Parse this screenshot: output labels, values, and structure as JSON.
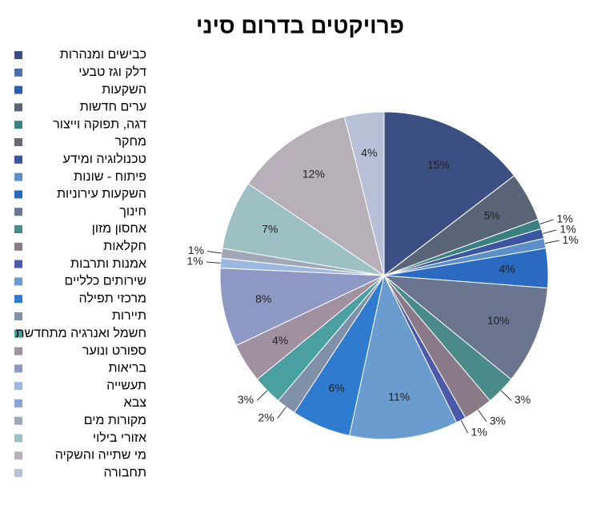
{
  "chart_data": {
    "type": "pie",
    "title": "פרויקטים בדרום סיני",
    "categories": [
      "כבישים ומנהרות",
      "דלק וגז טבעי",
      "השקעות",
      "ערים חדשות",
      "דגה, תפוקה וייצור",
      "מחקר",
      "טכנולוגיה ומידע",
      "פיתוח - שונות",
      "השקעות עירוניות",
      "חינוך",
      "אחסון מזון",
      "חקלאות",
      "אמנות ותרבות",
      "שירותים כלליים",
      "מרכזי תפילה",
      "תיירות",
      "חשמל ואנרגיה מתחדשת",
      "ספורט ונוער",
      "בריאות",
      "תעשייה",
      "צבא",
      "מקורות מים",
      "אזורי בילוי",
      "מי שתייה והשקיה",
      "תחבורה"
    ],
    "values": [
      15,
      0,
      0,
      5,
      1,
      0,
      1,
      1,
      4,
      10,
      3,
      3,
      1,
      11,
      6,
      2,
      3,
      4,
      8,
      1,
      0,
      1,
      7,
      12,
      4
    ],
    "value_labels": [
      "15%",
      null,
      null,
      "5%",
      "1%",
      null,
      "1%",
      "1%",
      "4%",
      "10%",
      "3%",
      "3%",
      "1%",
      "11%",
      "6%",
      "2%",
      "3%",
      "4%",
      "8%",
      "1%",
      null,
      "1%",
      "7%",
      "12%",
      "4%"
    ],
    "colors": [
      "#3b4f82",
      "#4a6fa5",
      "#2b5fa8",
      "#5a6477",
      "#3a8080",
      "#6e6670",
      "#3b55a0",
      "#5a8fc8",
      "#2a6ac0",
      "#6a7590",
      "#4a8a8a",
      "#8a7a88",
      "#4a5aa8",
      "#6a9cd0",
      "#2e7bd0",
      "#8090a8",
      "#4aa0a0",
      "#a090a0",
      "#8e98c4",
      "#9ab8e0",
      "#8aa4d4",
      "#a0a8b8",
      "#9cc0c4",
      "#b8b0b8",
      "#b8c0d8"
    ],
    "legend": "left"
  }
}
